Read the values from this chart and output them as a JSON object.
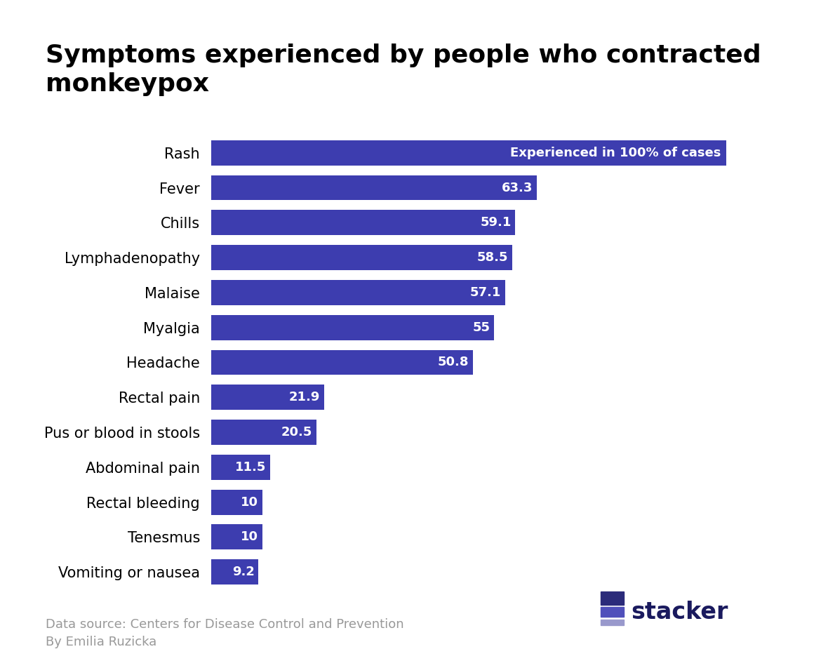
{
  "title": "Symptoms experienced by people who contracted\nmonkeypox",
  "categories": [
    "Rash",
    "Fever",
    "Chills",
    "Lymphadenopathy",
    "Malaise",
    "Myalgia",
    "Headache",
    "Rectal pain",
    "Pus or blood in stools",
    "Abdominal pain",
    "Rectal bleeding",
    "Tenesmus",
    "Vomiting or nausea"
  ],
  "values": [
    100,
    63.3,
    59.1,
    58.5,
    57.1,
    55,
    50.8,
    21.9,
    20.5,
    11.5,
    10,
    10,
    9.2
  ],
  "bar_labels": [
    "Experienced in 100% of cases",
    "63.3",
    "59.1",
    "58.5",
    "57.1",
    "55",
    "50.8",
    "21.9",
    "20.5",
    "11.5",
    "10",
    "10",
    "9.2"
  ],
  "bar_color": "#3d3daf",
  "background_color": "#ffffff",
  "text_color": "#000000",
  "label_color": "#ffffff",
  "footer_source": "Data source: Centers for Disease Control and Prevention",
  "footer_author": "By Emilia Ruzicka",
  "footer_color": "#999999",
  "title_fontsize": 26,
  "label_fontsize": 13,
  "category_fontsize": 15,
  "footer_fontsize": 13,
  "xlim": [
    0,
    115
  ],
  "logo_rect_colors": [
    "#2b2b7a",
    "#5050bb",
    "#9999cc"
  ],
  "logo_text_color": "#1a1a5e"
}
